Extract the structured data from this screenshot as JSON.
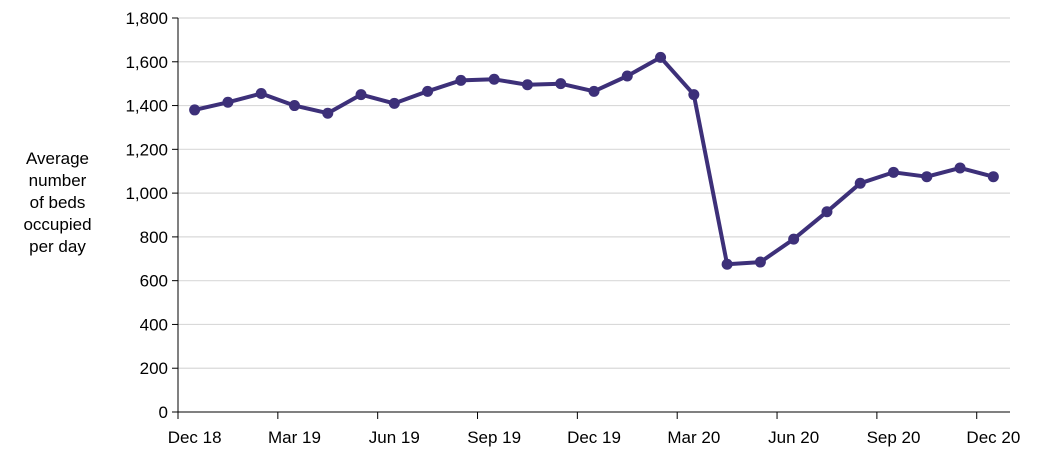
{
  "chart_data": {
    "type": "line",
    "title": "",
    "xlabel": "",
    "ylabel_lines": [
      "Average",
      "number",
      "of beds",
      "occupied",
      "per day"
    ],
    "ylim": [
      0,
      1800
    ],
    "y_ticks": [
      "0",
      "200",
      "400",
      "600",
      "800",
      "1,000",
      "1,200",
      "1,400",
      "1,600",
      "1,800"
    ],
    "y_tick_values": [
      0,
      200,
      400,
      600,
      800,
      1000,
      1200,
      1400,
      1600,
      1800
    ],
    "x_tick_labels": [
      "Dec 18",
      "Mar 19",
      "Jun 19",
      "Sep 19",
      "Dec 19",
      "Mar 20",
      "Jun 20",
      "Sep 20",
      "Dec 20"
    ],
    "grid": "horizontal",
    "line_color": "#3d3079",
    "series": [
      {
        "x": [
          "Dec 18",
          "Jan 19",
          "Feb 19",
          "Mar 19",
          "Apr 19",
          "May 19",
          "Jun 19",
          "Jul 19",
          "Aug 19",
          "Sep 19",
          "Oct 19",
          "Nov 19",
          "Dec 19",
          "Jan 20",
          "Feb 20",
          "Mar 20",
          "Apr 20",
          "May 20",
          "Jun 20",
          "Jul 20",
          "Aug 20",
          "Sep 20",
          "Oct 20",
          "Nov 20",
          "Dec 20"
        ],
        "values": [
          1380,
          1415,
          1455,
          1400,
          1365,
          1450,
          1410,
          1465,
          1515,
          1520,
          1495,
          1500,
          1465,
          1535,
          1620,
          1450,
          675,
          685,
          790,
          915,
          1045,
          1095,
          1075,
          1115,
          1075
        ]
      }
    ]
  }
}
